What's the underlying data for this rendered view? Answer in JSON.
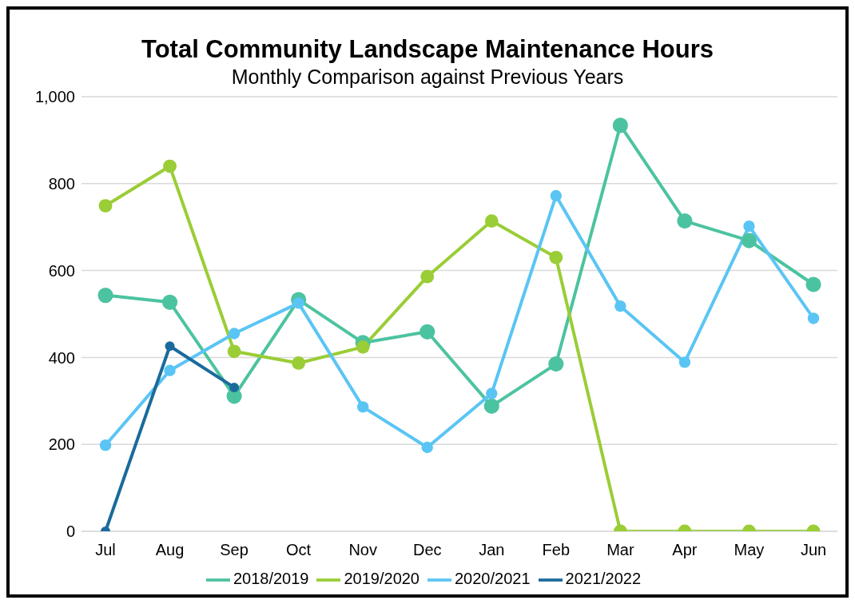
{
  "chart_data": {
    "type": "line",
    "title": "Total Community Landscape Maintenance Hours",
    "subtitle": "Monthly Comparison against Previous Years",
    "categories": [
      "Jul",
      "Aug",
      "Sep",
      "Oct",
      "Nov",
      "Dec",
      "Jan",
      "Feb",
      "Mar",
      "Apr",
      "May",
      "Jun"
    ],
    "series": [
      {
        "name": "2018/2019",
        "color": "#4cc3a0",
        "values": [
          543,
          527,
          311,
          533,
          434,
          459,
          288,
          385,
          934,
          714,
          669,
          568
        ]
      },
      {
        "name": "2019/2020",
        "color": "#9acd36",
        "values": [
          749,
          840,
          414,
          387,
          424,
          586,
          714,
          630,
          0,
          0,
          0,
          0
        ]
      },
      {
        "name": "2020/2021",
        "color": "#5ac5f4",
        "values": [
          198,
          370,
          455,
          525,
          286,
          193,
          317,
          772,
          518,
          389,
          702,
          490
        ]
      },
      {
        "name": "2021/2022",
        "color": "#1a6b9c",
        "values": [
          0,
          426,
          331,
          null,
          null,
          null,
          null,
          null,
          null,
          null,
          null,
          null
        ]
      }
    ],
    "ylim": [
      0,
      1000
    ],
    "yticks": [
      0,
      {
        "value": 200,
        "label": "200"
      },
      {
        "value": 400,
        "label": "400"
      },
      {
        "value": 600,
        "label": "600"
      },
      {
        "value": 800,
        "label": "800"
      },
      {
        "value": 1000,
        "label": "1,000"
      }
    ],
    "grid": "y",
    "legend": "bottom",
    "marker": "circle",
    "line_style": "solid"
  }
}
